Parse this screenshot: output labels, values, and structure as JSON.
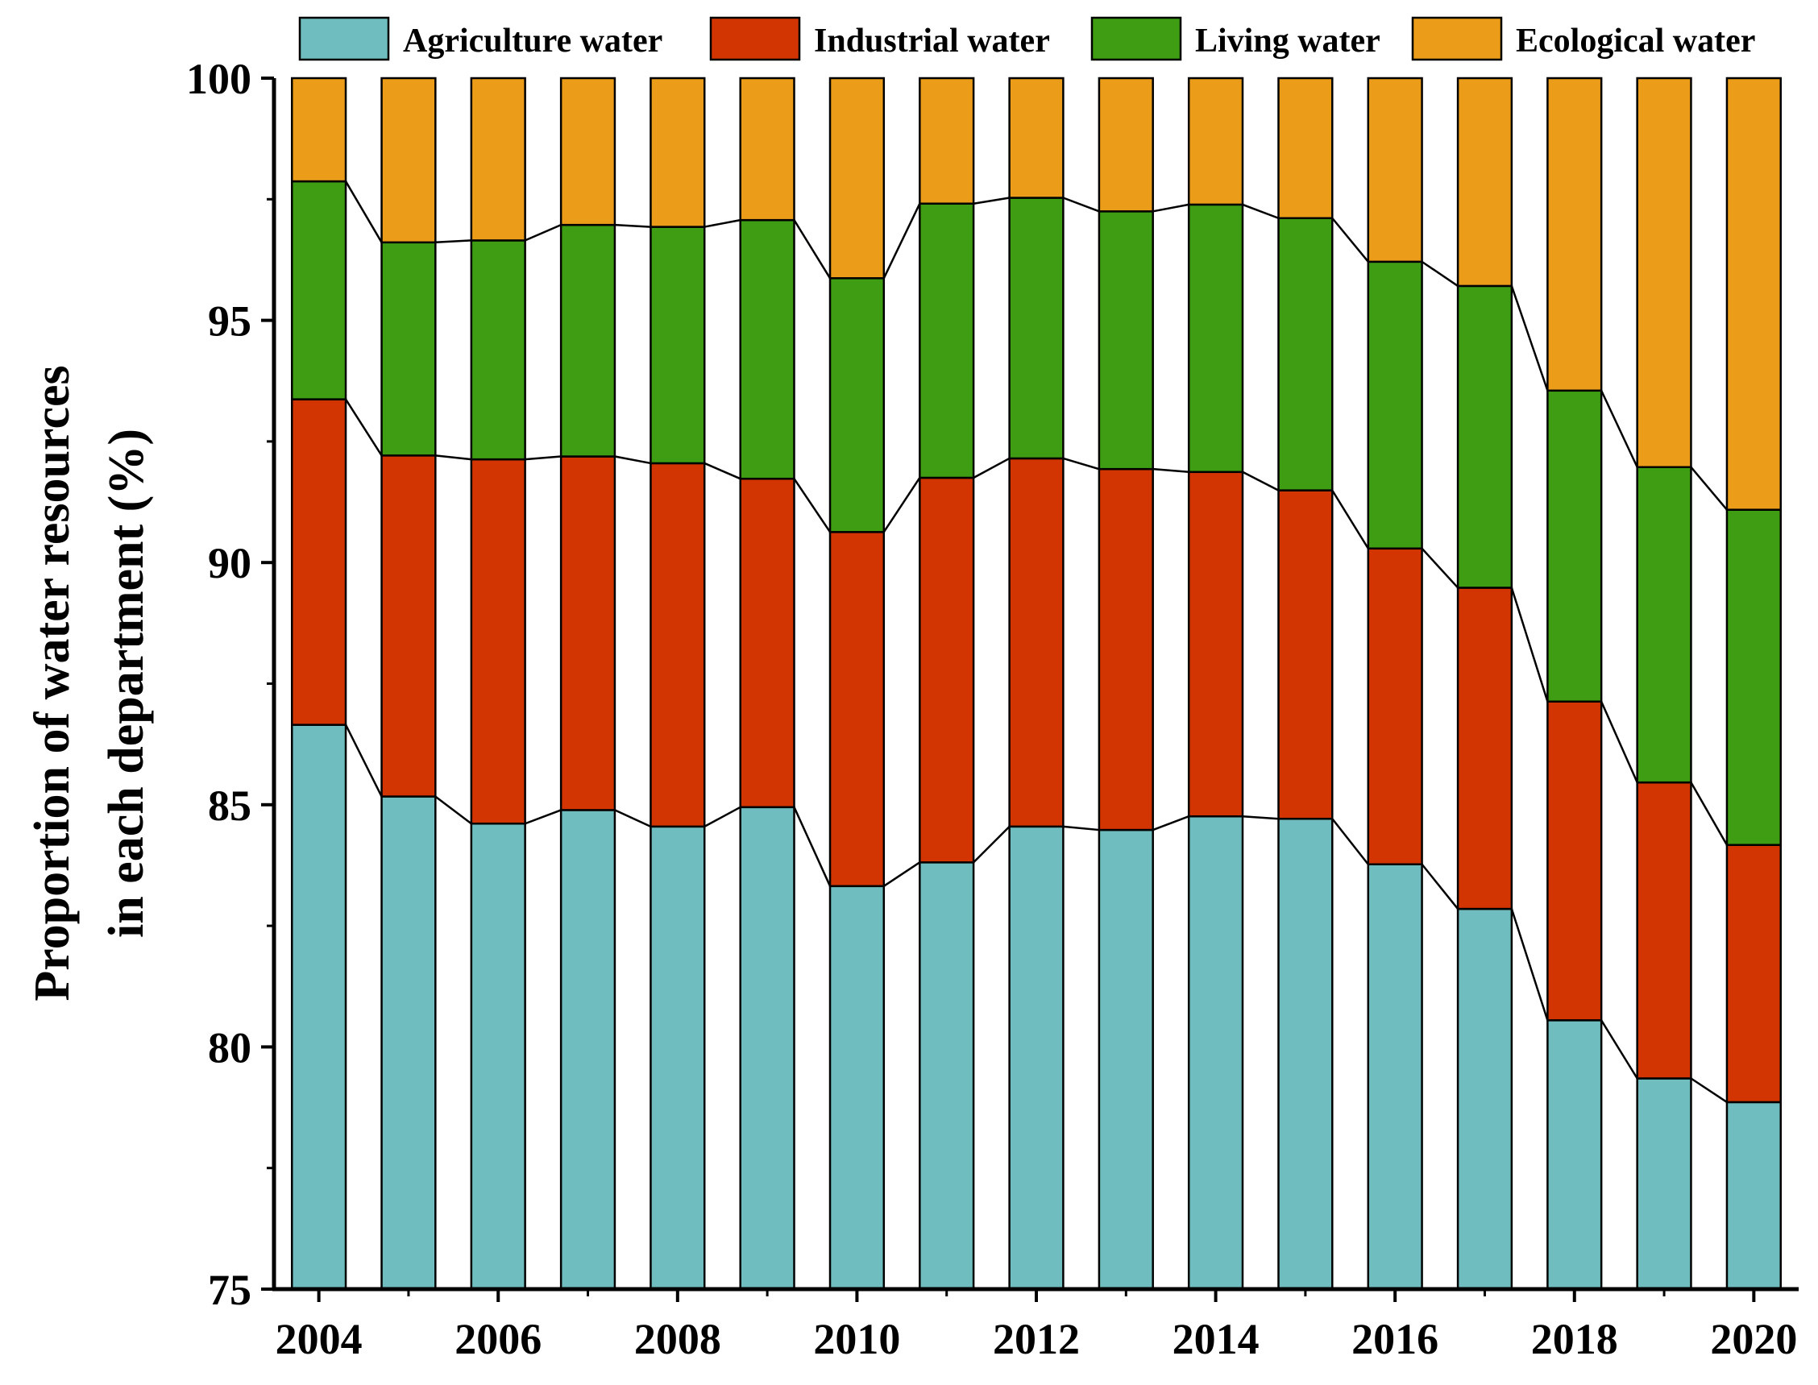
{
  "chart_data": {
    "type": "bar",
    "stacked": true,
    "categories": [
      "2004",
      "2005",
      "2006",
      "2007",
      "2008",
      "2009",
      "2010",
      "2011",
      "2012",
      "2013",
      "2014",
      "2015",
      "2016",
      "2017",
      "2018",
      "2019",
      "2020"
    ],
    "x_tick_labels": [
      "2004",
      "2006",
      "2008",
      "2010",
      "2012",
      "2014",
      "2016",
      "2018",
      "2020"
    ],
    "series": [
      {
        "name": "Agriculture water",
        "color": "#6fbdbe",
        "cumulative_top": [
          86.65,
          85.17,
          84.61,
          84.89,
          84.55,
          84.95,
          83.32,
          83.81,
          84.55,
          84.48,
          84.76,
          84.71,
          83.77,
          82.85,
          80.55,
          79.35,
          78.86
        ]
      },
      {
        "name": "Industrial water",
        "color": "#d33502",
        "cumulative_top": [
          93.37,
          92.21,
          92.13,
          92.19,
          92.05,
          91.73,
          90.63,
          91.75,
          92.15,
          91.93,
          91.87,
          91.49,
          90.29,
          89.48,
          87.13,
          85.46,
          84.17
        ]
      },
      {
        "name": "Living water",
        "color": "#3e9d12",
        "cumulative_top": [
          97.87,
          96.61,
          96.65,
          96.97,
          96.93,
          97.07,
          95.87,
          97.41,
          97.53,
          97.25,
          97.39,
          97.11,
          96.21,
          95.71,
          93.55,
          91.97,
          91.09
        ]
      },
      {
        "name": "Ecological water",
        "color": "#eb9d1a",
        "cumulative_top": [
          100,
          100,
          100,
          100,
          100,
          100,
          100,
          100,
          100,
          100,
          100,
          100,
          100,
          100,
          100,
          100,
          100
        ]
      }
    ],
    "y_ticks": [
      "75",
      "80",
      "85",
      "90",
      "95",
      "100"
    ],
    "ylim": [
      75,
      100
    ],
    "ylabel_line1": "Proportion of water resources",
    "ylabel_line2": "in each department (%)",
    "legend_position": "top",
    "grid": false
  }
}
